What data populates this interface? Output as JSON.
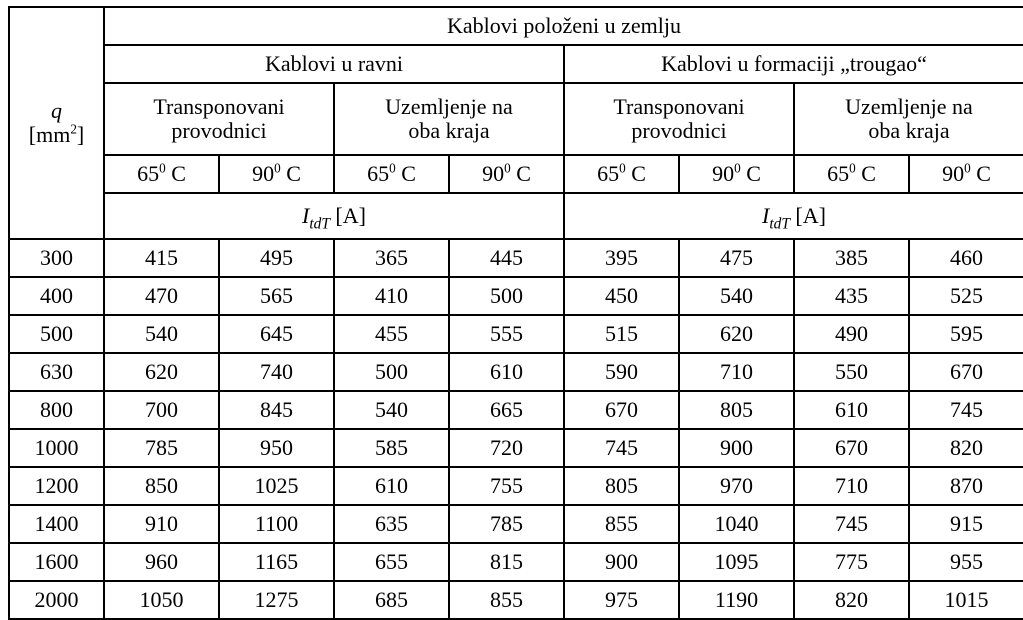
{
  "header": {
    "q_label_html": "<span class=\"itdt\">q</span><br>[mm<sup>2</sup>]",
    "top": "Kablovi položeni u zemlju",
    "group_flat": "Kablovi u ravni",
    "group_tri": "Kablovi u formaciji „trougao“",
    "sub_transp_html": "Transponovani<br>provodnici",
    "sub_ground_html": "Uzemljenje na<br>oba kraja",
    "t65_html": "65<sup>0</sup> C",
    "t90_html": "90<sup>0</sup> C",
    "itdt_html": "<span class=\"itdt\">I<sub>tdT</sub></span> [A]"
  },
  "rows": [
    {
      "q": "300",
      "c": [
        "415",
        "495",
        "365",
        "445",
        "395",
        "475",
        "385",
        "460"
      ]
    },
    {
      "q": "400",
      "c": [
        "470",
        "565",
        "410",
        "500",
        "450",
        "540",
        "435",
        "525"
      ]
    },
    {
      "q": "500",
      "c": [
        "540",
        "645",
        "455",
        "555",
        "515",
        "620",
        "490",
        "595"
      ]
    },
    {
      "q": "630",
      "c": [
        "620",
        "740",
        "500",
        "610",
        "590",
        "710",
        "550",
        "670"
      ]
    },
    {
      "q": "800",
      "c": [
        "700",
        "845",
        "540",
        "665",
        "670",
        "805",
        "610",
        "745"
      ]
    },
    {
      "q": "1000",
      "c": [
        "785",
        "950",
        "585",
        "720",
        "745",
        "900",
        "670",
        "820"
      ]
    },
    {
      "q": "1200",
      "c": [
        "850",
        "1025",
        "610",
        "755",
        "805",
        "970",
        "710",
        "870"
      ]
    },
    {
      "q": "1400",
      "c": [
        "910",
        "1100",
        "635",
        "785",
        "855",
        "1040",
        "745",
        "915"
      ]
    },
    {
      "q": "1600",
      "c": [
        "960",
        "1165",
        "655",
        "815",
        "900",
        "1095",
        "775",
        "955"
      ]
    },
    {
      "q": "2000",
      "c": [
        "1050",
        "1275",
        "685",
        "855",
        "975",
        "1190",
        "820",
        "1015"
      ]
    }
  ],
  "style": {
    "border_color": "#000000",
    "background_color": "#ffffff",
    "font_family": "Times New Roman",
    "base_font_size_pt": 16
  }
}
